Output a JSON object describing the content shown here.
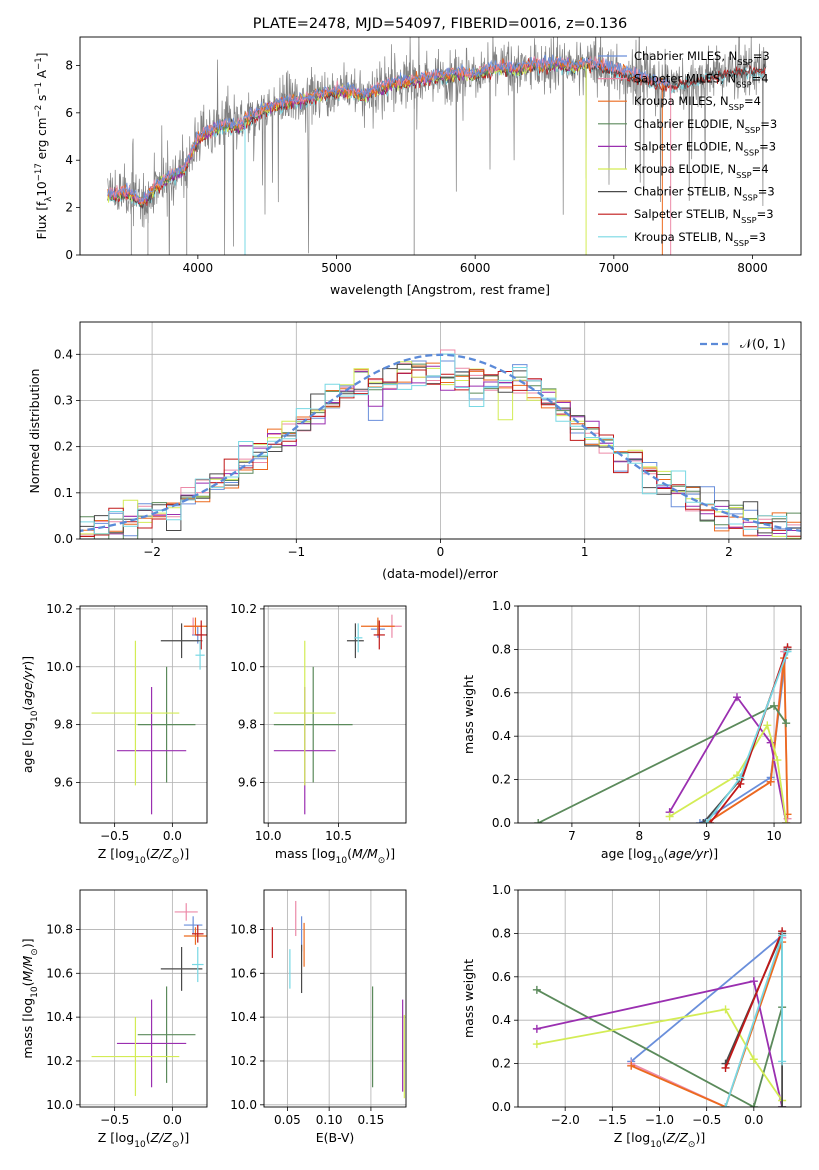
{
  "colors": {
    "Chabrier MILES": "#6a8fdb",
    "Salpeter MILES": "#ec8aa8",
    "Kroupa MILES": "#ec6a1e",
    "Chabrier ELODIE": "#5b8a5b",
    "Salpeter ELODIE": "#9a2fb0",
    "Kroupa ELODIE": "#d3ec55",
    "Chabrier STELIB": "#4a4a4a",
    "Salpeter STELIB": "#c01818",
    "Kroupa STELIB": "#78d8e4",
    "normal_curve": "#5b8ad8",
    "data_spectrum": "#808080"
  },
  "chart_data": [
    {
      "id": "spectrum",
      "type": "line",
      "title": "PLATE=2478, MJD=54097, FIBERID=0016, z=0.136",
      "xlabel": "wavelength [Angstrom, rest frame]",
      "ylabel": "Flux [f_λ 10^-17 erg cm^-2 s^-1 A^-1]",
      "xlim": [
        3150,
        8350
      ],
      "ylim": [
        0,
        9.2
      ],
      "xticks": [
        "4000",
        "5000",
        "6000",
        "7000",
        "8000"
      ],
      "yticks": [
        "0",
        "2",
        "4",
        "6",
        "8"
      ],
      "grid": false,
      "legend_position": "top-right",
      "legend": [
        "Chabrier MILES, N_SSP=3",
        "Salpeter MILES, N_SSP=4",
        "Kroupa MILES, N_SSP=4",
        "Chabrier ELODIE, N_SSP=3",
        "Salpeter ELODIE, N_SSP=3",
        "Kroupa ELODIE, N_SSP=4",
        "Chabrier STELIB, N_SSP=3",
        "Salpeter STELIB, N_SSP=3",
        "Kroupa STELIB, N_SSP=3"
      ],
      "continuum": [
        [
          3350,
          2.5
        ],
        [
          3500,
          2.6
        ],
        [
          3600,
          2.2
        ],
        [
          3700,
          2.9
        ],
        [
          3800,
          3.3
        ],
        [
          3900,
          3.6
        ],
        [
          4000,
          4.9
        ],
        [
          4100,
          5.3
        ],
        [
          4200,
          5.5
        ],
        [
          4300,
          5.4
        ],
        [
          4400,
          5.9
        ],
        [
          4500,
          6.2
        ],
        [
          4600,
          6.4
        ],
        [
          4700,
          6.5
        ],
        [
          4800,
          6.6
        ],
        [
          4900,
          6.8
        ],
        [
          5000,
          6.9
        ],
        [
          5100,
          6.9
        ],
        [
          5200,
          6.7
        ],
        [
          5300,
          7.0
        ],
        [
          5400,
          7.2
        ],
        [
          5500,
          7.3
        ],
        [
          5600,
          7.4
        ],
        [
          5700,
          7.5
        ],
        [
          5800,
          7.6
        ],
        [
          5900,
          7.7
        ],
        [
          6000,
          7.6
        ],
        [
          6100,
          7.8
        ],
        [
          6200,
          7.9
        ],
        [
          6300,
          7.8
        ],
        [
          6400,
          8.0
        ],
        [
          6500,
          8.0
        ],
        [
          6600,
          8.1
        ],
        [
          6700,
          7.9
        ],
        [
          6800,
          8.1
        ],
        [
          6900,
          8.0
        ],
        [
          7000,
          7.8
        ],
        [
          7100,
          7.7
        ],
        [
          7200,
          7.5
        ],
        [
          7300,
          7.3
        ],
        [
          7400,
          7.2
        ],
        [
          7500,
          7.3
        ],
        [
          7600,
          7.4
        ],
        [
          7700,
          7.6
        ],
        [
          7800,
          7.7
        ],
        [
          7900,
          7.8
        ],
        [
          8000,
          7.8
        ],
        [
          8100,
          7.9
        ]
      ],
      "data_range": [
        3350,
        8100
      ],
      "model_ranges": {
        "STELIB": [
          3350,
          8100
        ],
        "ELODIE": [
          3350,
          6800
        ],
        "MILES": [
          3350,
          7400
        ]
      }
    },
    {
      "id": "residual_hist",
      "type": "histogram",
      "xlabel": "(data-model)/error",
      "ylabel": "Normed distribution",
      "xlim": [
        -2.5,
        2.5
      ],
      "ylim": [
        0,
        0.47
      ],
      "xticks": [
        -2,
        -1,
        0,
        1,
        2
      ],
      "yticks": [
        0.0,
        0.1,
        0.2,
        0.3,
        0.4
      ],
      "grid": true,
      "legend_position": "top-right",
      "legend": [
        "N(0,1)"
      ],
      "bin_width": 0.1,
      "series": [
        {
          "name": "Chabrier MILES",
          "offset": 0.0
        },
        {
          "name": "Salpeter MILES",
          "offset": 0.3
        },
        {
          "name": "Kroupa MILES",
          "offset": 0.7
        },
        {
          "name": "Chabrier ELODIE",
          "offset": 1.1
        },
        {
          "name": "Salpeter ELODIE",
          "offset": 1.6
        },
        {
          "name": "Kroupa ELODIE",
          "offset": 2.0
        },
        {
          "name": "Chabrier STELIB",
          "offset": 2.5
        },
        {
          "name": "Salpeter STELIB",
          "offset": 3.0
        },
        {
          "name": "Kroupa STELIB",
          "offset": 3.5
        }
      ]
    },
    {
      "id": "age_vs_Z",
      "type": "errorbar",
      "xlabel": "Z [log10(Z/Z☉)]",
      "ylabel": "age  [log10(age/yr)]",
      "xlim": [
        -0.8,
        0.3
      ],
      "ylim": [
        9.46,
        10.21
      ],
      "xticks": [
        "-0.5",
        "0.0"
      ],
      "yticks": [
        "9.6",
        "9.8",
        "10.0",
        "10.2"
      ],
      "grid": true,
      "points": [
        {
          "name": "Chabrier MILES",
          "x": 0.22,
          "y": 10.11,
          "xerr": 0.05,
          "yerr": 0.03
        },
        {
          "name": "Salpeter MILES",
          "x": 0.18,
          "y": 10.14,
          "xerr": 0.08,
          "yerr": 0.03
        },
        {
          "name": "Kroupa MILES",
          "x": 0.2,
          "y": 10.14,
          "xerr": 0.1,
          "yerr": 0.03
        },
        {
          "name": "Chabrier ELODIE",
          "x": -0.05,
          "y": 9.8,
          "xerr": 0.25,
          "yerr": 0.2
        },
        {
          "name": "Salpeter ELODIE",
          "x": -0.18,
          "y": 9.71,
          "xerr": 0.3,
          "yerr": 0.22
        },
        {
          "name": "Kroupa ELODIE",
          "x": -0.32,
          "y": 9.84,
          "xerr": 0.38,
          "yerr": 0.25
        },
        {
          "name": "Chabrier STELIB",
          "x": 0.08,
          "y": 10.09,
          "xerr": 0.18,
          "yerr": 0.06
        },
        {
          "name": "Salpeter STELIB",
          "x": 0.25,
          "y": 10.11,
          "xerr": 0.05,
          "yerr": 0.05
        },
        {
          "name": "Kroupa STELIB",
          "x": 0.24,
          "y": 10.04,
          "xerr": 0.04,
          "yerr": 0.05
        }
      ]
    },
    {
      "id": "age_vs_mass",
      "type": "errorbar",
      "xlabel": "mass [log10(M/M☉)]",
      "xlim": [
        9.97,
        10.98
      ],
      "ylim": [
        9.46,
        10.21
      ],
      "xticks": [
        "10.0",
        "10.5"
      ],
      "yticks": [
        "9.6",
        "9.8",
        "10.0",
        "10.2"
      ],
      "grid": true,
      "points": [
        {
          "name": "Chabrier MILES",
          "x": 10.78,
          "y": 10.13,
          "xerr": 0.05,
          "yerr": 0.03
        },
        {
          "name": "Salpeter MILES",
          "x": 10.88,
          "y": 10.14,
          "xerr": 0.07,
          "yerr": 0.04
        },
        {
          "name": "Kroupa MILES",
          "x": 10.78,
          "y": 10.14,
          "xerr": 0.12,
          "yerr": 0.03
        },
        {
          "name": "Chabrier ELODIE",
          "x": 10.32,
          "y": 9.8,
          "xerr": 0.28,
          "yerr": 0.2
        },
        {
          "name": "Salpeter ELODIE",
          "x": 10.26,
          "y": 9.71,
          "xerr": 0.22,
          "yerr": 0.22
        },
        {
          "name": "Kroupa ELODIE",
          "x": 10.26,
          "y": 9.84,
          "xerr": 0.22,
          "yerr": 0.25
        },
        {
          "name": "Chabrier STELIB",
          "x": 10.62,
          "y": 10.09,
          "xerr": 0.06,
          "yerr": 0.06
        },
        {
          "name": "Salpeter STELIB",
          "x": 10.79,
          "y": 10.11,
          "xerr": 0.04,
          "yerr": 0.05
        },
        {
          "name": "Kroupa STELIB",
          "x": 10.64,
          "y": 10.1,
          "xerr": 0.03,
          "yerr": 0.05
        }
      ]
    },
    {
      "id": "weight_vs_age",
      "type": "line",
      "xlabel": "age  [log10(age/yr)]",
      "ylabel": "mass weight",
      "xlim": [
        6.2,
        10.4
      ],
      "ylim": [
        0.0,
        1.0
      ],
      "xticks": [
        "7",
        "8",
        "9",
        "10"
      ],
      "yticks": [
        "0.0",
        "0.2",
        "0.4",
        "0.6",
        "0.8",
        "1.0"
      ],
      "grid": true,
      "series": [
        {
          "name": "Chabrier MILES",
          "x": [
            8.9,
            9.95,
            10.18
          ],
          "y": [
            0.0,
            0.21,
            0.79
          ]
        },
        {
          "name": "Salpeter MILES",
          "x": [
            9.0,
            9.95,
            10.15,
            10.2
          ],
          "y": [
            0.0,
            0.19,
            0.79,
            0.02
          ]
        },
        {
          "name": "Kroupa MILES",
          "x": [
            9.0,
            9.95,
            10.15,
            10.2
          ],
          "y": [
            0.0,
            0.19,
            0.76,
            0.04
          ]
        },
        {
          "name": "Chabrier ELODIE",
          "x": [
            6.5,
            10.0,
            10.18
          ],
          "y": [
            0.0,
            0.54,
            0.46
          ]
        },
        {
          "name": "Salpeter ELODIE",
          "x": [
            8.45,
            9.45,
            9.95,
            10.18
          ],
          "y": [
            0.05,
            0.58,
            0.37,
            0.0
          ]
        },
        {
          "name": "Kroupa ELODIE",
          "x": [
            8.45,
            9.45,
            9.9,
            10.05,
            10.18
          ],
          "y": [
            0.03,
            0.22,
            0.45,
            0.29,
            0.0
          ]
        },
        {
          "name": "Chabrier STELIB",
          "x": [
            8.95,
            9.5,
            10.2
          ],
          "y": [
            0.0,
            0.2,
            0.8
          ]
        },
        {
          "name": "Salpeter STELIB",
          "x": [
            9.05,
            9.5,
            10.2
          ],
          "y": [
            0.0,
            0.18,
            0.81
          ]
        },
        {
          "name": "Kroupa STELIB",
          "x": [
            9.0,
            9.5,
            10.2
          ],
          "y": [
            0.0,
            0.21,
            0.79
          ]
        }
      ]
    },
    {
      "id": "mass_vs_Z",
      "type": "errorbar",
      "xlabel": "Z [log10(Z/Z☉)]",
      "ylabel": "mass [log10(M/M☉)]",
      "xlim": [
        -0.8,
        0.3
      ],
      "ylim": [
        9.99,
        10.98
      ],
      "xticks": [
        "-0.5",
        "0.0"
      ],
      "yticks": [
        "10.0",
        "10.2",
        "10.4",
        "10.6",
        "10.8"
      ],
      "grid": true,
      "points": [
        {
          "name": "Chabrier MILES",
          "x": 0.18,
          "y": 10.82,
          "xerr": 0.08,
          "yerr": 0.04
        },
        {
          "name": "Salpeter MILES",
          "x": 0.12,
          "y": 10.88,
          "xerr": 0.1,
          "yerr": 0.04
        },
        {
          "name": "Kroupa MILES",
          "x": 0.2,
          "y": 10.77,
          "xerr": 0.1,
          "yerr": 0.04
        },
        {
          "name": "Chabrier ELODIE",
          "x": -0.05,
          "y": 10.32,
          "xerr": 0.25,
          "yerr": 0.22
        },
        {
          "name": "Salpeter ELODIE",
          "x": -0.18,
          "y": 10.28,
          "xerr": 0.3,
          "yerr": 0.2
        },
        {
          "name": "Kroupa ELODIE",
          "x": -0.32,
          "y": 10.22,
          "xerr": 0.38,
          "yerr": 0.18
        },
        {
          "name": "Chabrier STELIB",
          "x": 0.08,
          "y": 10.62,
          "xerr": 0.18,
          "yerr": 0.1
        },
        {
          "name": "Salpeter STELIB",
          "x": 0.22,
          "y": 10.78,
          "xerr": 0.05,
          "yerr": 0.04
        },
        {
          "name": "Kroupa STELIB",
          "x": 0.22,
          "y": 10.64,
          "xerr": 0.05,
          "yerr": 0.08
        }
      ]
    },
    {
      "id": "mass_vs_ebv",
      "type": "errorbar",
      "xlabel": "E(B-V)",
      "xlim": [
        0.022,
        0.192
      ],
      "ylim": [
        9.99,
        10.98
      ],
      "xticks": [
        "0.05",
        "0.10",
        "0.15"
      ],
      "yticks": [
        "10.0",
        "10.2",
        "10.4",
        "10.6",
        "10.8"
      ],
      "grid": true,
      "points": [
        {
          "name": "Chabrier MILES",
          "x": 0.067,
          "y": 10.78,
          "xerr": 0.0,
          "yerr": 0.08
        },
        {
          "name": "Salpeter MILES",
          "x": 0.06,
          "y": 10.85,
          "xerr": 0.0,
          "yerr": 0.08
        },
        {
          "name": "Kroupa MILES",
          "x": 0.07,
          "y": 10.73,
          "xerr": 0.0,
          "yerr": 0.1
        },
        {
          "name": "Chabrier ELODIE",
          "x": 0.152,
          "y": 10.31,
          "xerr": 0.0,
          "yerr": 0.23
        },
        {
          "name": "Salpeter ELODIE",
          "x": 0.188,
          "y": 10.27,
          "xerr": 0.0,
          "yerr": 0.21
        },
        {
          "name": "Kroupa ELODIE",
          "x": 0.19,
          "y": 10.22,
          "xerr": 0.0,
          "yerr": 0.19
        },
        {
          "name": "Chabrier STELIB",
          "x": 0.067,
          "y": 10.62,
          "xerr": 0.0,
          "yerr": 0.11
        },
        {
          "name": "Salpeter STELIB",
          "x": 0.032,
          "y": 10.74,
          "xerr": 0.0,
          "yerr": 0.07
        },
        {
          "name": "Kroupa STELIB",
          "x": 0.053,
          "y": 10.62,
          "xerr": 0.0,
          "yerr": 0.09
        }
      ]
    },
    {
      "id": "weight_vs_Z",
      "type": "line",
      "xlabel": "Z [log10(Z/Z☉)]",
      "ylabel": "mass weight",
      "xlim": [
        -2.5,
        0.5
      ],
      "ylim": [
        0.0,
        1.0
      ],
      "xticks": [
        "-2.0",
        "-1.5",
        "-1.0",
        "-0.5",
        "0.0"
      ],
      "yticks": [
        "0.0",
        "0.2",
        "0.4",
        "0.6",
        "0.8",
        "1.0"
      ],
      "grid": true,
      "series": [
        {
          "name": "Chabrier MILES",
          "x": [
            -1.3,
            0.3,
            0.3
          ],
          "y": [
            0.21,
            0.79,
            0.78
          ]
        },
        {
          "name": "Salpeter MILES",
          "x": [
            -1.3,
            -0.3,
            0.3
          ],
          "y": [
            0.2,
            0.0,
            0.78
          ]
        },
        {
          "name": "Kroupa MILES",
          "x": [
            -1.3,
            -0.3,
            0.3
          ],
          "y": [
            0.19,
            0.0,
            0.76
          ]
        },
        {
          "name": "Chabrier ELODIE",
          "x": [
            -2.3,
            0.0,
            0.3
          ],
          "y": [
            0.54,
            0.0,
            0.46
          ]
        },
        {
          "name": "Salpeter ELODIE",
          "x": [
            -2.3,
            0.0,
            0.3
          ],
          "y": [
            0.36,
            0.58,
            0.0
          ]
        },
        {
          "name": "Kroupa ELODIE",
          "x": [
            -2.3,
            -0.3,
            0.0,
            0.3
          ],
          "y": [
            0.29,
            0.45,
            0.22,
            0.03
          ]
        },
        {
          "name": "Chabrier STELIB",
          "x": [
            -0.3,
            0.3,
            0.3
          ],
          "y": [
            0.2,
            0.8,
            0.0
          ]
        },
        {
          "name": "Salpeter STELIB",
          "x": [
            -0.3,
            0.3
          ],
          "y": [
            0.18,
            0.81
          ]
        },
        {
          "name": "Kroupa STELIB",
          "x": [
            -0.3,
            0.3,
            0.3
          ],
          "y": [
            0.0,
            0.79,
            0.21
          ]
        }
      ]
    }
  ]
}
